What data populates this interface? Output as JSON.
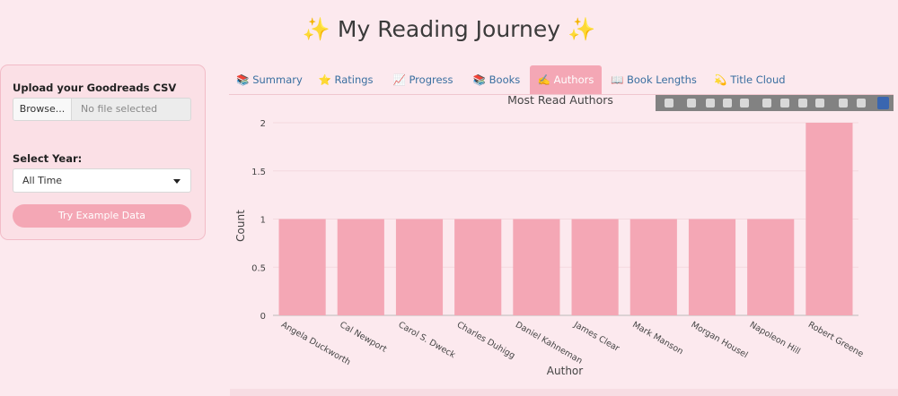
{
  "app": {
    "title": "✨ My Reading Journey ✨"
  },
  "sidebar": {
    "upload_label": "Upload your Goodreads CSV",
    "browse_label": "Browse...",
    "file_placeholder": "No file selected",
    "year_label": "Select Year:",
    "year_value": "All Time",
    "example_button": "Try Example Data"
  },
  "tabs": [
    {
      "icon": "📚",
      "label": "Summary"
    },
    {
      "icon": "⭐",
      "label": "Ratings"
    },
    {
      "icon": "📈",
      "label": "Progress"
    },
    {
      "icon": "📚",
      "label": "Books"
    },
    {
      "icon": "✍️",
      "label": "Authors"
    },
    {
      "icon": "📖",
      "label": "Book Lengths"
    },
    {
      "icon": "💫",
      "label": "Title Cloud"
    }
  ],
  "active_tab": "Authors",
  "colors": {
    "accent": "#f4a7b5",
    "background": "#fce9ee",
    "tab_text": "#3a6fa0"
  },
  "chart_data": {
    "type": "bar",
    "title": "Most Read Authors",
    "xlabel": "Author",
    "ylabel": "Count",
    "ylim": [
      0,
      2
    ],
    "yticks": [
      "0",
      "0.5",
      "1",
      "1.5",
      "2"
    ],
    "categories": [
      "Angela Duckworth",
      "Cal Newport",
      "Carol S. Dweck",
      "Charles Duhigg",
      "Daniel Kahneman",
      "James Clear",
      "Mark Manson",
      "Morgan Housel",
      "Napoleon Hill",
      "Robert Greene"
    ],
    "values": [
      1,
      1,
      1,
      1,
      1,
      1,
      1,
      1,
      1,
      2
    ],
    "bar_color": "#f4a7b5",
    "grid": true
  }
}
